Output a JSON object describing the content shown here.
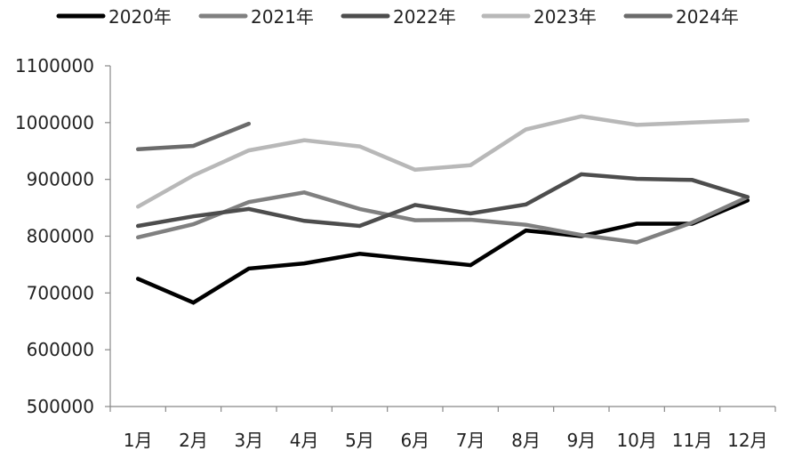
{
  "chart_data": {
    "type": "line",
    "title": "",
    "xlabel": "",
    "ylabel": "",
    "categories": [
      "1月",
      "2月",
      "3月",
      "4月",
      "5月",
      "6月",
      "7月",
      "8月",
      "9月",
      "10月",
      "11月",
      "12月"
    ],
    "ylim": [
      500000,
      1100000
    ],
    "yticks": [
      "500000",
      "600000",
      "700000",
      "800000",
      "900000",
      "1000000",
      "1100000"
    ],
    "grid": false,
    "legend_position": "top",
    "series": [
      {
        "name": "2020年",
        "color": "#000000",
        "values": [
          725000,
          683000,
          743000,
          752000,
          769000,
          759000,
          749000,
          810000,
          800000,
          822000,
          822000,
          863000
        ]
      },
      {
        "name": "2021年",
        "color": "#808080",
        "values": [
          798000,
          821000,
          860000,
          877000,
          848000,
          828000,
          829000,
          820000,
          802000,
          789000,
          824000,
          869000
        ]
      },
      {
        "name": "2022年",
        "color": "#4d4d4d",
        "values": [
          818000,
          835000,
          848000,
          827000,
          818000,
          855000,
          840000,
          856000,
          909000,
          901000,
          899000,
          869000
        ]
      },
      {
        "name": "2023年",
        "color": "#b8b8b8",
        "values": [
          852000,
          907000,
          951000,
          969000,
          958000,
          917000,
          925000,
          988000,
          1011000,
          996000,
          1000000,
          1004000
        ]
      },
      {
        "name": "2024年",
        "color": "#6b6b6b",
        "values": [
          953000,
          959000,
          998000,
          null,
          null,
          null,
          null,
          null,
          null,
          null,
          null,
          null
        ]
      }
    ]
  }
}
